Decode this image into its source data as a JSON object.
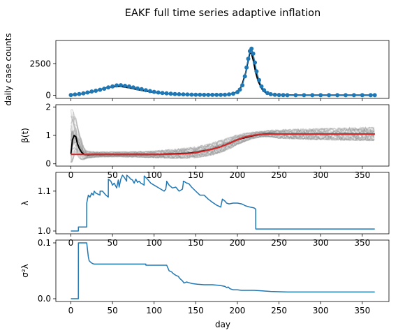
{
  "figure": {
    "title": "EAKF full time series adaptive inflation",
    "xlabel": "day",
    "colors": {
      "ensemble": "#7f7f7f",
      "mean": "#000000",
      "truth": "#d62728",
      "obs": "#1f77b4"
    }
  },
  "chart_data": [
    {
      "type": "scatter",
      "panel": "cases",
      "ylabel": "daily case counts",
      "xlim": [
        -18,
        382
      ],
      "ylim": [
        -250,
        4350
      ],
      "xticks": [
        0,
        50,
        100,
        150,
        200,
        250,
        300,
        350
      ],
      "yticks": [
        0,
        2500
      ],
      "xtick_labels_visible": false,
      "series": [
        {
          "role": "ensemble-mean",
          "style": "line",
          "color": "#000000",
          "x": [
            0,
            10,
            20,
            30,
            40,
            50,
            60,
            70,
            80,
            90,
            100,
            110,
            120,
            130,
            140,
            150,
            160,
            170,
            180,
            190,
            200,
            205,
            210,
            213,
            215,
            217,
            219,
            222,
            225,
            230,
            235,
            240,
            250,
            260,
            280,
            300,
            330,
            365
          ],
          "y": [
            20,
            90,
            200,
            350,
            550,
            680,
            700,
            590,
            450,
            330,
            230,
            160,
            110,
            80,
            60,
            45,
            35,
            30,
            30,
            60,
            250,
            700,
            1800,
            2800,
            3400,
            3300,
            2800,
            1800,
            1100,
            450,
            150,
            60,
            20,
            10,
            5,
            5,
            5,
            5
          ]
        },
        {
          "role": "observations",
          "style": "markers",
          "color": "#1f77b4",
          "x": [
            0,
            5,
            10,
            15,
            20,
            25,
            30,
            35,
            40,
            45,
            50,
            55,
            60,
            65,
            70,
            75,
            80,
            85,
            90,
            95,
            100,
            105,
            110,
            115,
            120,
            125,
            130,
            135,
            140,
            145,
            150,
            155,
            160,
            165,
            170,
            175,
            180,
            185,
            190,
            195,
            200,
            203,
            206,
            209,
            211,
            213,
            215,
            217,
            219,
            221,
            223,
            226,
            229,
            232,
            236,
            240,
            245,
            250,
            255,
            260,
            270,
            280,
            290,
            300,
            310,
            320,
            330,
            340,
            350,
            360,
            365
          ],
          "y": [
            20,
            60,
            100,
            150,
            220,
            300,
            360,
            440,
            520,
            620,
            700,
            780,
            800,
            750,
            700,
            620,
            540,
            480,
            400,
            330,
            270,
            220,
            180,
            150,
            120,
            100,
            80,
            70,
            60,
            50,
            45,
            40,
            35,
            30,
            30,
            30,
            35,
            45,
            70,
            120,
            250,
            450,
            800,
            1500,
            2200,
            2900,
            3500,
            3700,
            3300,
            2600,
            1900,
            1200,
            700,
            400,
            180,
            80,
            40,
            20,
            10,
            5,
            5,
            5,
            5,
            5,
            5,
            5,
            5,
            5,
            5,
            5,
            5
          ]
        }
      ]
    },
    {
      "type": "line",
      "panel": "beta",
      "ylabel": "β(t)",
      "xlim": [
        -18,
        382
      ],
      "ylim": [
        -0.08,
        2.08
      ],
      "xticks": [
        0,
        50,
        100,
        150,
        200,
        250,
        300,
        350
      ],
      "yticks": [
        0,
        1,
        2
      ],
      "xtick_labels_visible": true,
      "series": [
        {
          "role": "ensemble-mean",
          "color": "#000000",
          "x": [
            0,
            2,
            4,
            6,
            8,
            10,
            13,
            16,
            20,
            30,
            50,
            80,
            100,
            120,
            140,
            150,
            160,
            170,
            180,
            190,
            200,
            210,
            220,
            230,
            240,
            250,
            300,
            365
          ],
          "y": [
            0.35,
            0.85,
            1.0,
            0.95,
            0.7,
            0.55,
            0.4,
            0.33,
            0.32,
            0.33,
            0.33,
            0.33,
            0.33,
            0.35,
            0.37,
            0.4,
            0.46,
            0.52,
            0.6,
            0.72,
            0.85,
            0.93,
            1.0,
            1.04,
            1.06,
            1.05,
            1.05,
            1.05
          ]
        },
        {
          "role": "truth",
          "color": "#d62728",
          "x": [
            0,
            20,
            50,
            80,
            100,
            120,
            140,
            150,
            160,
            170,
            180,
            190,
            200,
            210,
            220,
            230,
            240,
            250,
            300,
            365
          ],
          "y": [
            0.33,
            0.33,
            0.33,
            0.33,
            0.33,
            0.34,
            0.36,
            0.39,
            0.45,
            0.52,
            0.6,
            0.72,
            0.85,
            0.95,
            1.01,
            1.04,
            1.05,
            1.05,
            1.05,
            1.05
          ]
        }
      ],
      "spread": {
        "x": [
          0,
          2,
          4,
          6,
          8,
          10,
          13,
          16,
          20,
          30,
          50,
          80,
          100,
          120,
          140,
          150,
          160,
          170,
          180,
          190,
          200,
          210,
          220,
          230,
          240,
          250,
          300,
          365
        ],
        "lower": [
          0.05,
          0.1,
          0.3,
          0.4,
          0.3,
          0.2,
          0.15,
          0.15,
          0.2,
          0.24,
          0.25,
          0.24,
          0.22,
          0.2,
          0.2,
          0.22,
          0.26,
          0.32,
          0.4,
          0.52,
          0.68,
          0.8,
          0.9,
          0.95,
          0.95,
          0.9,
          0.85,
          0.82
        ],
        "upper": [
          1.9,
          1.95,
          1.7,
          1.6,
          1.3,
          1.1,
          0.8,
          0.55,
          0.45,
          0.42,
          0.42,
          0.43,
          0.45,
          0.5,
          0.56,
          0.6,
          0.66,
          0.74,
          0.82,
          0.92,
          1.02,
          1.08,
          1.12,
          1.15,
          1.18,
          1.2,
          1.24,
          1.28
        ]
      }
    },
    {
      "type": "line",
      "panel": "lambda",
      "ylabel": "λ",
      "xlim": [
        -18,
        382
      ],
      "ylim": [
        0.993,
        1.147
      ],
      "xticks": [
        0,
        50,
        100,
        150,
        200,
        250,
        300,
        350
      ],
      "yticks": [
        1.0,
        1.1
      ],
      "ytick_labels": [
        "1.0",
        "1.1"
      ],
      "xtick_labels_visible": true,
      "series": [
        {
          "role": "inflation",
          "color": "#1f77b4",
          "x": [
            0,
            9,
            9.1,
            19,
            19.1,
            21,
            23,
            25,
            27,
            28,
            30,
            35,
            35.1,
            38,
            42,
            45,
            45.1,
            48,
            50,
            52,
            55,
            57,
            58,
            60,
            62,
            64,
            67,
            67.1,
            70,
            72,
            74,
            76,
            78,
            80,
            82,
            84,
            86,
            88,
            88.1,
            92,
            96,
            100,
            104,
            108,
            112,
            114,
            115,
            115.1,
            118,
            122,
            126,
            130,
            134,
            135,
            135.1,
            137,
            139,
            140,
            142,
            145,
            150,
            155,
            160,
            165,
            170,
            175,
            180,
            182,
            185,
            187,
            190,
            195,
            200,
            205,
            210,
            215,
            220,
            222,
            222.1,
            300,
            365
          ],
          "y": [
            1.0,
            1.0,
            1.01,
            1.01,
            1.07,
            1.09,
            1.085,
            1.095,
            1.09,
            1.1,
            1.095,
            1.09,
            1.1,
            1.1,
            1.09,
            1.085,
            1.13,
            1.125,
            1.115,
            1.12,
            1.108,
            1.128,
            1.11,
            1.13,
            1.14,
            1.135,
            1.125,
            1.14,
            1.135,
            1.13,
            1.128,
            1.12,
            1.13,
            1.122,
            1.125,
            1.12,
            1.118,
            1.115,
            1.138,
            1.13,
            1.12,
            1.115,
            1.11,
            1.105,
            1.1,
            1.105,
            1.12,
            1.125,
            1.115,
            1.108,
            1.11,
            1.1,
            1.105,
            1.12,
            1.125,
            1.123,
            1.12,
            1.12,
            1.118,
            1.11,
            1.1,
            1.09,
            1.09,
            1.08,
            1.072,
            1.065,
            1.06,
            1.08,
            1.075,
            1.07,
            1.068,
            1.07,
            1.07,
            1.068,
            1.063,
            1.06,
            1.058,
            1.055,
            1.005,
            1.005,
            1.005
          ]
        }
      ]
    },
    {
      "type": "line",
      "panel": "sigma",
      "ylabel": "σ²λ",
      "xlim": [
        -18,
        382
      ],
      "ylim": [
        -0.005,
        0.105
      ],
      "xticks": [
        0,
        50,
        100,
        150,
        200,
        250,
        300,
        350
      ],
      "yticks": [
        0.0,
        0.1
      ],
      "ytick_labels": [
        "0.0",
        "0.1"
      ],
      "xtick_labels_visible": true,
      "series": [
        {
          "role": "inflation-variance",
          "color": "#1f77b4",
          "x": [
            0,
            9,
            9.1,
            19,
            19.1,
            21,
            22,
            24,
            26,
            28,
            30,
            60,
            90,
            90.1,
            115,
            115.1,
            118,
            121,
            123,
            126,
            129,
            131,
            134,
            136,
            139,
            141,
            146,
            152,
            160,
            170,
            177,
            182,
            185,
            187,
            189,
            191,
            193,
            195,
            200,
            205,
            210,
            215,
            220,
            230,
            240,
            260,
            300,
            365
          ],
          "y": [
            0,
            0,
            0.1,
            0.1,
            0.1,
            0.075,
            0.068,
            0.065,
            0.063,
            0.062,
            0.062,
            0.062,
            0.062,
            0.06,
            0.06,
            0.06,
            0.05,
            0.048,
            0.045,
            0.042,
            0.04,
            0.036,
            0.032,
            0.028,
            0.03,
            0.029,
            0.027,
            0.026,
            0.025,
            0.025,
            0.024,
            0.023,
            0.022,
            0.02,
            0.021,
            0.018,
            0.017,
            0.016,
            0.016,
            0.015,
            0.015,
            0.015,
            0.015,
            0.014,
            0.013,
            0.012,
            0.012,
            0.012
          ]
        }
      ]
    }
  ]
}
